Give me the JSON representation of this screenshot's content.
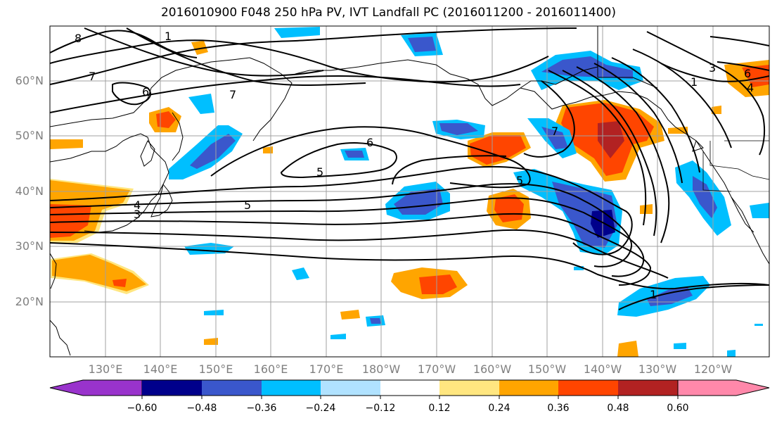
{
  "title": "2016010900 F048 250 hPa PV, IVT Landfall PC (2016011200 - 2016011400)",
  "axes": {
    "lat_labels": [
      "20°N",
      "30°N",
      "40°N",
      "50°N",
      "60°N"
    ],
    "lat_values": [
      20,
      30,
      40,
      50,
      60
    ],
    "lon_labels": [
      "130°E",
      "140°E",
      "150°E",
      "160°E",
      "170°E",
      "180°W",
      "170°W",
      "160°W",
      "150°W",
      "140°W",
      "130°W",
      "120°W"
    ],
    "lon_values": [
      130,
      140,
      150,
      160,
      170,
      180,
      190,
      200,
      210,
      220,
      230,
      240
    ],
    "lon_range_east": [
      120,
      250
    ],
    "lat_range": [
      10,
      70
    ],
    "grid": true
  },
  "contour_labels": [
    "8",
    "7",
    "1",
    "6",
    "7",
    "7",
    "6",
    "5",
    "5",
    "4",
    "3",
    "5",
    "1",
    "3",
    "1",
    "6",
    "4"
  ],
  "colorbar": {
    "ticks": [
      "−0.60",
      "−0.48",
      "−0.36",
      "−0.24",
      "−0.12",
      "0.12",
      "0.24",
      "0.36",
      "0.48",
      "0.60"
    ],
    "colors": [
      "#9933cc",
      "#00008b",
      "#3a57cc",
      "#00bfff",
      "#b0e2ff",
      "#ffffff",
      "#ffe680",
      "#ffa500",
      "#ff4500",
      "#b22222",
      "#ff88aa"
    ],
    "extend": "both"
  },
  "colors": {
    "grid": "#a0a0a0",
    "coast": "#000000",
    "contour": "#000000"
  }
}
